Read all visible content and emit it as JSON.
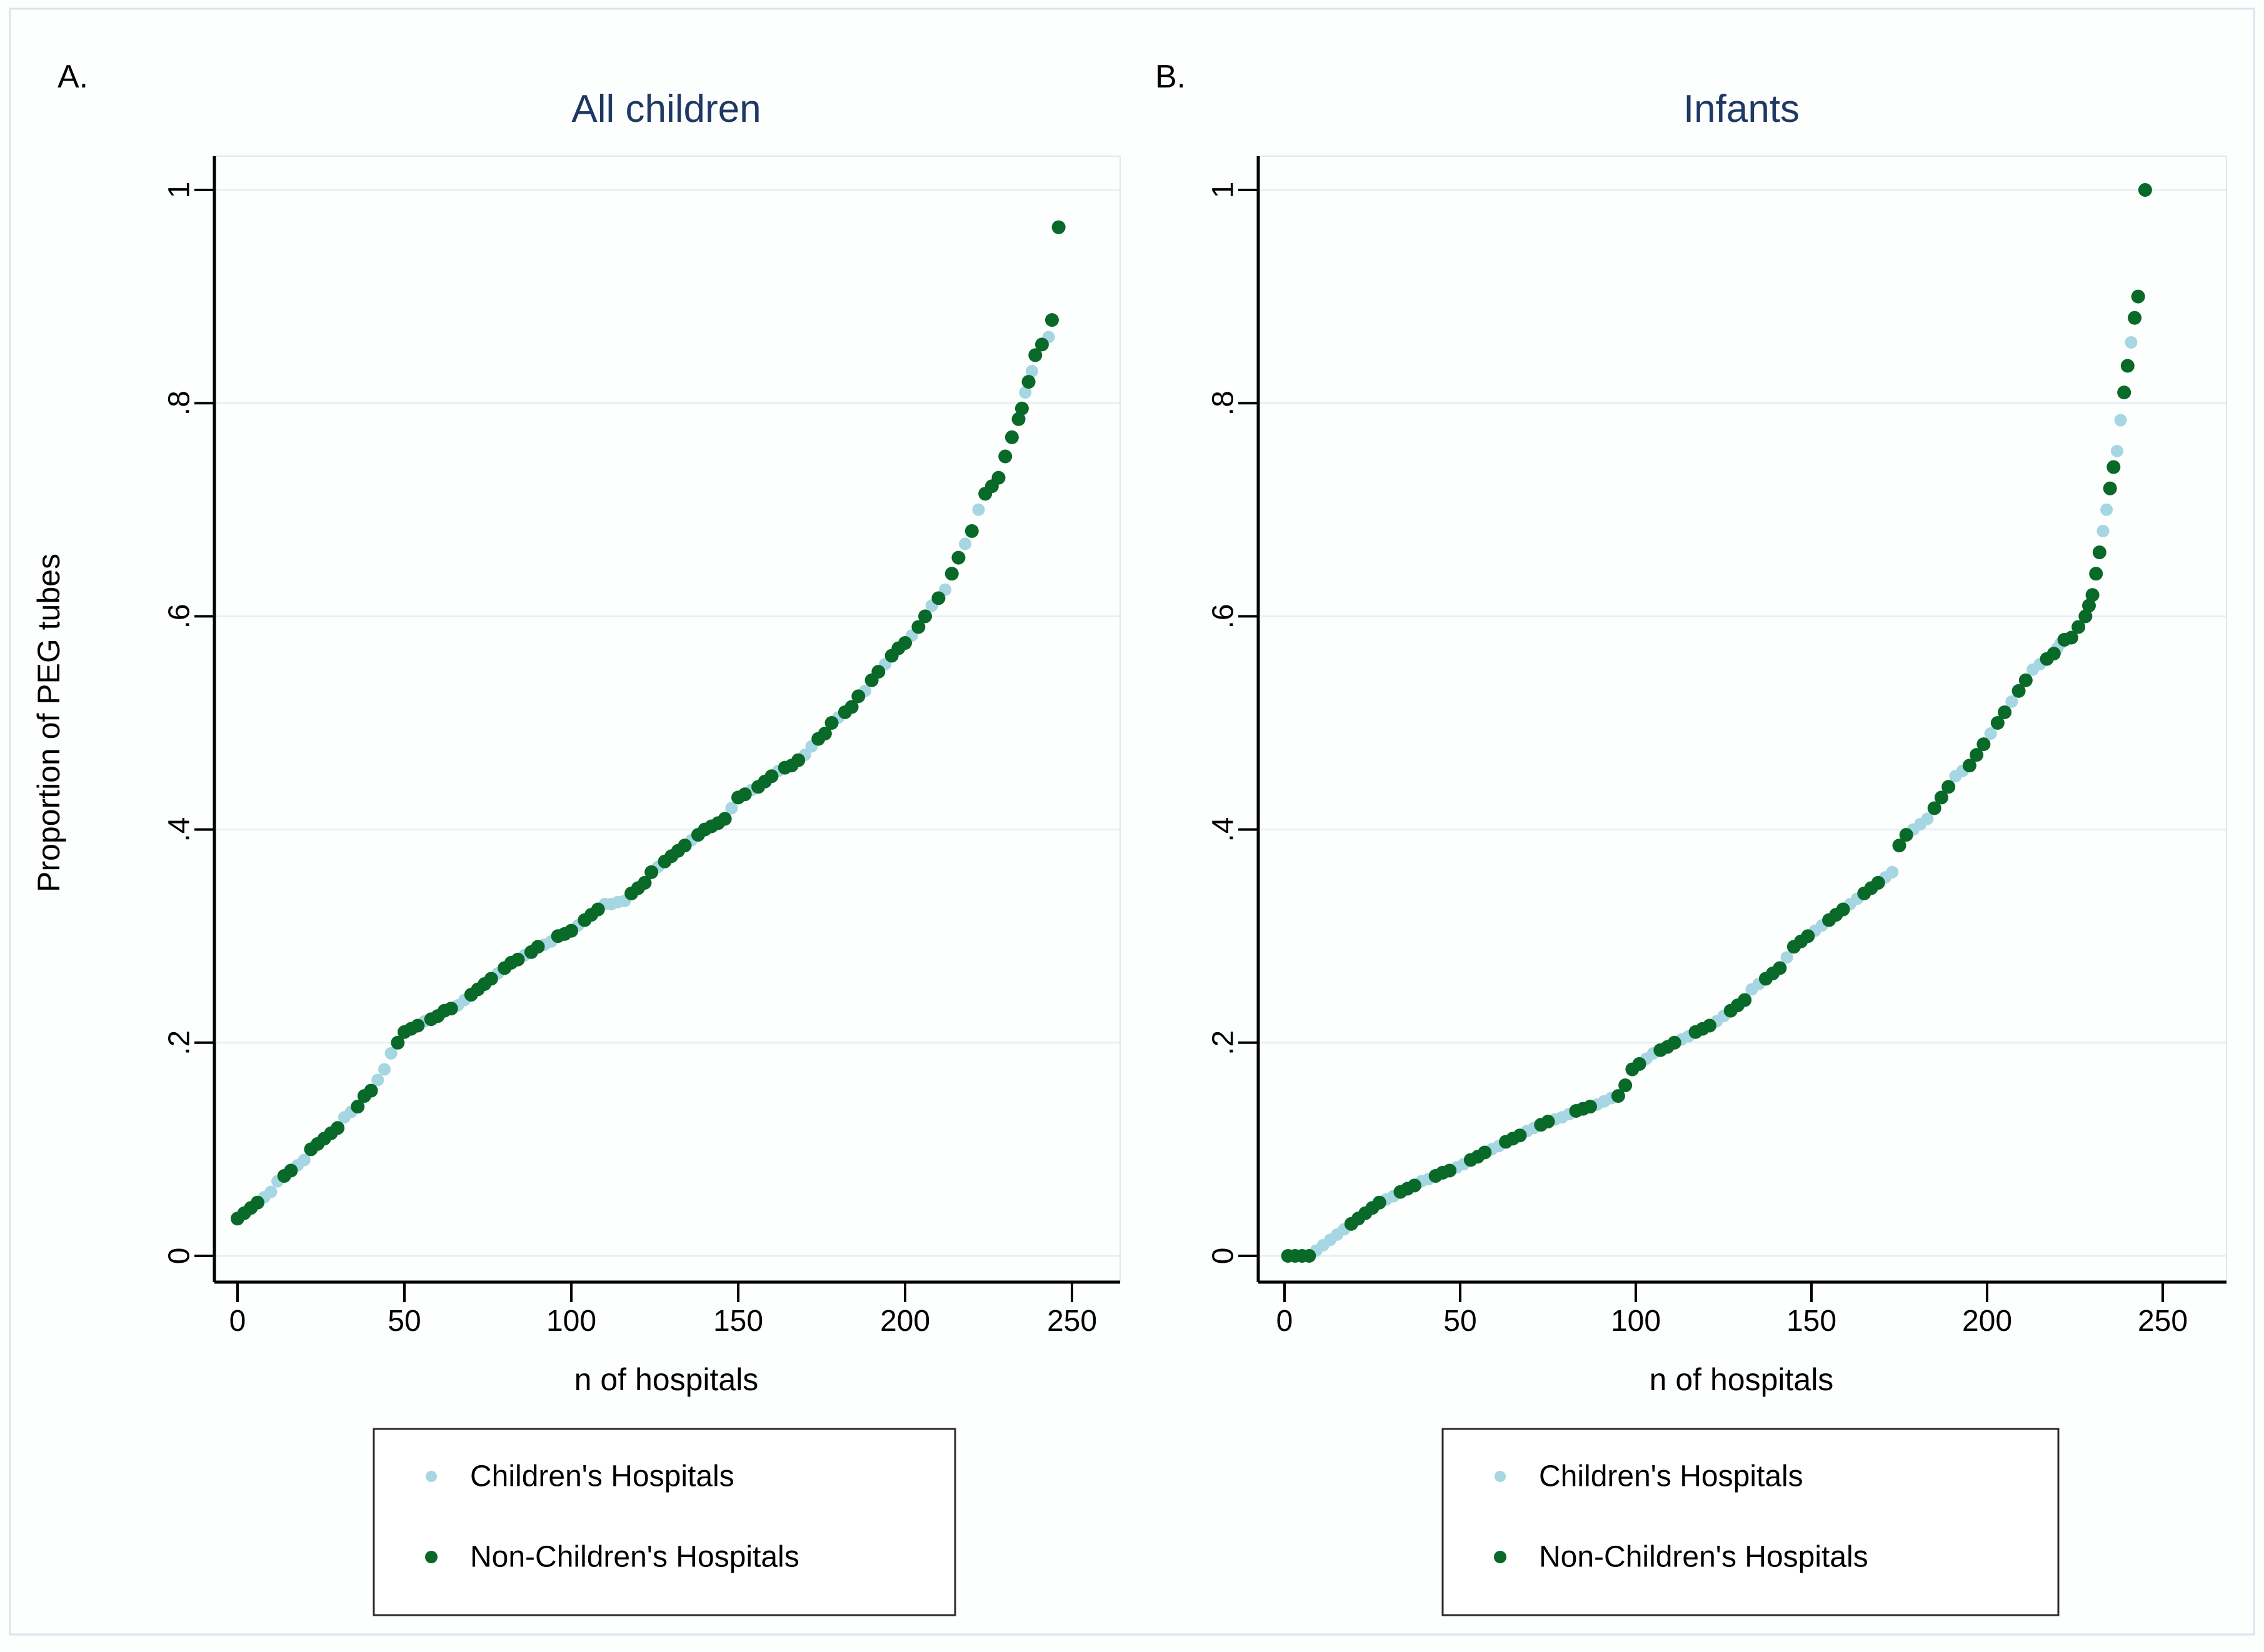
{
  "figure": {
    "panel_a_label": "A.",
    "panel_b_label": "B.",
    "ylabel": "Proportion of PEG tubes",
    "xlabel": "n of hospitals",
    "colors": {
      "children_hospitals": "#a5d6e2",
      "non_children_hospitals": "#096928",
      "title_text": "#1f3864",
      "gridline": "#e8f0f2",
      "axis": "#000000",
      "frame": "#dfe9ec",
      "outer_border": "#d9e5ec"
    },
    "legend": {
      "items": [
        {
          "label": "Children's Hospitals",
          "color": "#a5d6e2"
        },
        {
          "label": "Non-Children's Hospitals",
          "color": "#096928"
        }
      ]
    }
  },
  "chart_data": [
    {
      "panel": "A",
      "type": "scatter",
      "title": "All children",
      "xlabel": "n of hospitals",
      "ylabel": "Proportion of PEG tubes",
      "xlim": [
        0,
        250
      ],
      "ylim": [
        0,
        1
      ],
      "xticks": [
        0,
        50,
        100,
        150,
        200,
        250
      ],
      "yticks": [
        "0",
        ".2",
        ".4",
        ".6",
        ".8",
        "1"
      ],
      "grid": true,
      "legend_position": "below",
      "series": [
        {
          "name": "Children's Hospitals",
          "color": "#a5d6e2",
          "points": [
            [
              8,
              0.055
            ],
            [
              10,
              0.06
            ],
            [
              12,
              0.07
            ],
            [
              18,
              0.085
            ],
            [
              20,
              0.09
            ],
            [
              32,
              0.13
            ],
            [
              34,
              0.135
            ],
            [
              42,
              0.165
            ],
            [
              44,
              0.175
            ],
            [
              46,
              0.19
            ],
            [
              56,
              0.22
            ],
            [
              66,
              0.235
            ],
            [
              68,
              0.24
            ],
            [
              78,
              0.265
            ],
            [
              86,
              0.282
            ],
            [
              92,
              0.292
            ],
            [
              94,
              0.295
            ],
            [
              102,
              0.31
            ],
            [
              110,
              0.33
            ],
            [
              112,
              0.33
            ],
            [
              114,
              0.332
            ],
            [
              116,
              0.333
            ],
            [
              126,
              0.365
            ],
            [
              136,
              0.39
            ],
            [
              148,
              0.42
            ],
            [
              154,
              0.437
            ],
            [
              162,
              0.455
            ],
            [
              170,
              0.47
            ],
            [
              172,
              0.478
            ],
            [
              180,
              0.505
            ],
            [
              188,
              0.53
            ],
            [
              194,
              0.555
            ],
            [
              202,
              0.582
            ],
            [
              208,
              0.61
            ],
            [
              212,
              0.625
            ],
            [
              218,
              0.668
            ],
            [
              222,
              0.7
            ],
            [
              236,
              0.81
            ],
            [
              238,
              0.83
            ],
            [
              243,
              0.862
            ]
          ]
        },
        {
          "name": "Non-Children's Hospitals",
          "color": "#096928",
          "points": [
            [
              0,
              0.035
            ],
            [
              2,
              0.04
            ],
            [
              4,
              0.045
            ],
            [
              6,
              0.05
            ],
            [
              14,
              0.075
            ],
            [
              16,
              0.08
            ],
            [
              22,
              0.1
            ],
            [
              24,
              0.105
            ],
            [
              26,
              0.11
            ],
            [
              28,
              0.115
            ],
            [
              30,
              0.12
            ],
            [
              36,
              0.14
            ],
            [
              38,
              0.15
            ],
            [
              40,
              0.155
            ],
            [
              48,
              0.2
            ],
            [
              50,
              0.21
            ],
            [
              52,
              0.213
            ],
            [
              54,
              0.216
            ],
            [
              58,
              0.222
            ],
            [
              60,
              0.225
            ],
            [
              62,
              0.23
            ],
            [
              64,
              0.232
            ],
            [
              70,
              0.245
            ],
            [
              72,
              0.25
            ],
            [
              74,
              0.255
            ],
            [
              76,
              0.26
            ],
            [
              80,
              0.27
            ],
            [
              82,
              0.275
            ],
            [
              84,
              0.278
            ],
            [
              88,
              0.285
            ],
            [
              90,
              0.29
            ],
            [
              96,
              0.3
            ],
            [
              98,
              0.302
            ],
            [
              100,
              0.305
            ],
            [
              104,
              0.315
            ],
            [
              106,
              0.32
            ],
            [
              108,
              0.325
            ],
            [
              118,
              0.34
            ],
            [
              120,
              0.345
            ],
            [
              122,
              0.35
            ],
            [
              124,
              0.36
            ],
            [
              128,
              0.37
            ],
            [
              130,
              0.375
            ],
            [
              132,
              0.38
            ],
            [
              134,
              0.385
            ],
            [
              138,
              0.395
            ],
            [
              140,
              0.4
            ],
            [
              142,
              0.403
            ],
            [
              144,
              0.406
            ],
            [
              146,
              0.41
            ],
            [
              150,
              0.43
            ],
            [
              152,
              0.433
            ],
            [
              156,
              0.44
            ],
            [
              158,
              0.445
            ],
            [
              160,
              0.45
            ],
            [
              164,
              0.458
            ],
            [
              166,
              0.46
            ],
            [
              168,
              0.465
            ],
            [
              174,
              0.485
            ],
            [
              176,
              0.49
            ],
            [
              178,
              0.5
            ],
            [
              182,
              0.51
            ],
            [
              184,
              0.515
            ],
            [
              186,
              0.525
            ],
            [
              190,
              0.54
            ],
            [
              192,
              0.548
            ],
            [
              196,
              0.563
            ],
            [
              198,
              0.57
            ],
            [
              200,
              0.575
            ],
            [
              204,
              0.59
            ],
            [
              206,
              0.6
            ],
            [
              210,
              0.617
            ],
            [
              214,
              0.64
            ],
            [
              216,
              0.655
            ],
            [
              220,
              0.68
            ],
            [
              224,
              0.715
            ],
            [
              226,
              0.722
            ],
            [
              228,
              0.73
            ],
            [
              230,
              0.75
            ],
            [
              232,
              0.768
            ],
            [
              234,
              0.785
            ],
            [
              235,
              0.795
            ],
            [
              237,
              0.82
            ],
            [
              239,
              0.845
            ],
            [
              241,
              0.855
            ],
            [
              244,
              0.878
            ],
            [
              246,
              0.965
            ]
          ]
        }
      ]
    },
    {
      "panel": "B",
      "type": "scatter",
      "title": "Infants",
      "xlabel": "n of hospitals",
      "ylabel": "",
      "xlim": [
        0,
        250
      ],
      "ylim": [
        0,
        1
      ],
      "xticks": [
        0,
        50,
        100,
        150,
        200,
        250
      ],
      "yticks": [
        "0",
        ".2",
        ".4",
        ".6",
        ".8",
        "1"
      ],
      "grid": true,
      "legend_position": "below",
      "series": [
        {
          "name": "Children's Hospitals",
          "color": "#a5d6e2",
          "points": [
            [
              9,
              0.005
            ],
            [
              11,
              0.01
            ],
            [
              13,
              0.015
            ],
            [
              15,
              0.02
            ],
            [
              17,
              0.025
            ],
            [
              29,
              0.053
            ],
            [
              31,
              0.056
            ],
            [
              39,
              0.07
            ],
            [
              41,
              0.072
            ],
            [
              49,
              0.083
            ],
            [
              51,
              0.086
            ],
            [
              59,
              0.1
            ],
            [
              61,
              0.103
            ],
            [
              69,
              0.117
            ],
            [
              71,
              0.12
            ],
            [
              77,
              0.128
            ],
            [
              79,
              0.13
            ],
            [
              81,
              0.133
            ],
            [
              89,
              0.142
            ],
            [
              91,
              0.145
            ],
            [
              93,
              0.148
            ],
            [
              103,
              0.185
            ],
            [
              105,
              0.19
            ],
            [
              113,
              0.203
            ],
            [
              115,
              0.206
            ],
            [
              123,
              0.22
            ],
            [
              125,
              0.225
            ],
            [
              133,
              0.25
            ],
            [
              135,
              0.255
            ],
            [
              143,
              0.28
            ],
            [
              151,
              0.305
            ],
            [
              153,
              0.31
            ],
            [
              161,
              0.33
            ],
            [
              163,
              0.335
            ],
            [
              171,
              0.355
            ],
            [
              173,
              0.36
            ],
            [
              179,
              0.4
            ],
            [
              181,
              0.405
            ],
            [
              183,
              0.41
            ],
            [
              191,
              0.45
            ],
            [
              193,
              0.455
            ],
            [
              201,
              0.49
            ],
            [
              207,
              0.52
            ],
            [
              213,
              0.55
            ],
            [
              215,
              0.555
            ],
            [
              220,
              0.57
            ],
            [
              221,
              0.575
            ],
            [
              233,
              0.68
            ],
            [
              234,
              0.7
            ],
            [
              237,
              0.755
            ],
            [
              238,
              0.784
            ],
            [
              241,
              0.857
            ]
          ]
        },
        {
          "name": "Non-Children's Hospitals",
          "color": "#096928",
          "points": [
            [
              1,
              0
            ],
            [
              3,
              0
            ],
            [
              5,
              0
            ],
            [
              7,
              0
            ],
            [
              19,
              0.03
            ],
            [
              21,
              0.035
            ],
            [
              23,
              0.04
            ],
            [
              25,
              0.045
            ],
            [
              27,
              0.05
            ],
            [
              33,
              0.06
            ],
            [
              35,
              0.063
            ],
            [
              37,
              0.066
            ],
            [
              43,
              0.075
            ],
            [
              45,
              0.078
            ],
            [
              47,
              0.08
            ],
            [
              53,
              0.09
            ],
            [
              55,
              0.093
            ],
            [
              57,
              0.097
            ],
            [
              63,
              0.107
            ],
            [
              65,
              0.11
            ],
            [
              67,
              0.113
            ],
            [
              73,
              0.123
            ],
            [
              75,
              0.126
            ],
            [
              83,
              0.136
            ],
            [
              85,
              0.138
            ],
            [
              87,
              0.14
            ],
            [
              95,
              0.15
            ],
            [
              97,
              0.16
            ],
            [
              99,
              0.175
            ],
            [
              101,
              0.18
            ],
            [
              107,
              0.193
            ],
            [
              109,
              0.196
            ],
            [
              111,
              0.2
            ],
            [
              117,
              0.21
            ],
            [
              119,
              0.213
            ],
            [
              121,
              0.216
            ],
            [
              127,
              0.23
            ],
            [
              129,
              0.235
            ],
            [
              131,
              0.24
            ],
            [
              137,
              0.26
            ],
            [
              139,
              0.265
            ],
            [
              141,
              0.27
            ],
            [
              145,
              0.29
            ],
            [
              147,
              0.295
            ],
            [
              149,
              0.3
            ],
            [
              155,
              0.315
            ],
            [
              157,
              0.32
            ],
            [
              159,
              0.325
            ],
            [
              165,
              0.34
            ],
            [
              167,
              0.345
            ],
            [
              169,
              0.35
            ],
            [
              175,
              0.385
            ],
            [
              177,
              0.395
            ],
            [
              185,
              0.42
            ],
            [
              187,
              0.43
            ],
            [
              189,
              0.44
            ],
            [
              195,
              0.46
            ],
            [
              197,
              0.47
            ],
            [
              199,
              0.48
            ],
            [
              203,
              0.5
            ],
            [
              205,
              0.51
            ],
            [
              209,
              0.53
            ],
            [
              211,
              0.54
            ],
            [
              217,
              0.56
            ],
            [
              219,
              0.565
            ],
            [
              222,
              0.578
            ],
            [
              224,
              0.58
            ],
            [
              226,
              0.59
            ],
            [
              228,
              0.6
            ],
            [
              229,
              0.61
            ],
            [
              230,
              0.62
            ],
            [
              231,
              0.64
            ],
            [
              232,
              0.66
            ],
            [
              235,
              0.72
            ],
            [
              236,
              0.74
            ],
            [
              239,
              0.81
            ],
            [
              240,
              0.835
            ],
            [
              242,
              0.88
            ],
            [
              243,
              0.9
            ],
            [
              245,
              1.0
            ]
          ]
        }
      ]
    }
  ]
}
